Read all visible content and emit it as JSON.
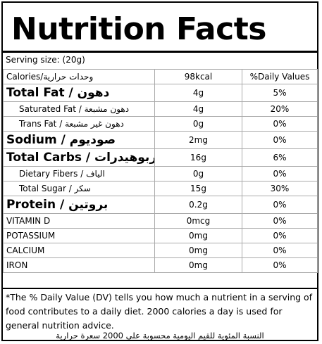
{
  "title": "Nutrition Facts",
  "serving": "Serving size:  (20g)",
  "header": {
    "label": "Calories/وحدات حرارية",
    "amount": "98kcal",
    "dv": "%Daily Values"
  },
  "rows": [
    {
      "label": "Total Fat / دهون",
      "amount": "4g",
      "dv": "5%"
    },
    {
      "label": "Saturated Fat / دهون مشبعة",
      "amount": "4g",
      "dv": "20%"
    },
    {
      "label": "Trans Fat / دهون غير مشبعة",
      "amount": "0g",
      "dv": "0%"
    },
    {
      "label": "Sodium / صوديوم",
      "amount": "2mg",
      "dv": "0%"
    },
    {
      "label": "Total Carbs / كربوهيدرات",
      "amount": "16g",
      "dv": "6%"
    },
    {
      "label": "Dietary Fibers / الياف",
      "amount": "0g",
      "dv": "0%"
    },
    {
      "label": "Total Sugar / سكر",
      "amount": "15g",
      "dv": "30%"
    },
    {
      "label": "Protein / بروتين",
      "amount": "0.2g",
      "dv": "0%"
    },
    {
      "label": "VITAMIN D",
      "amount": "0mcg",
      "dv": "0%"
    },
    {
      "label": "POTASSIUM",
      "amount": "0mg",
      "dv": "0%"
    },
    {
      "label": "CALCIUM",
      "amount": "0mg",
      "dv": "0%"
    },
    {
      "label": "IRON",
      "amount": "0mg",
      "dv": "0%"
    }
  ],
  "footnote": "*The % Daily Value (DV) tells you how much a nutrient in a serving of food contributes to a daily diet. 2000 calories a day is used for general nutrition advice.",
  "footnote_ar": "النسبة المئوية للقيم اليومية محسوبة على 2000 سعرة حرارية"
}
